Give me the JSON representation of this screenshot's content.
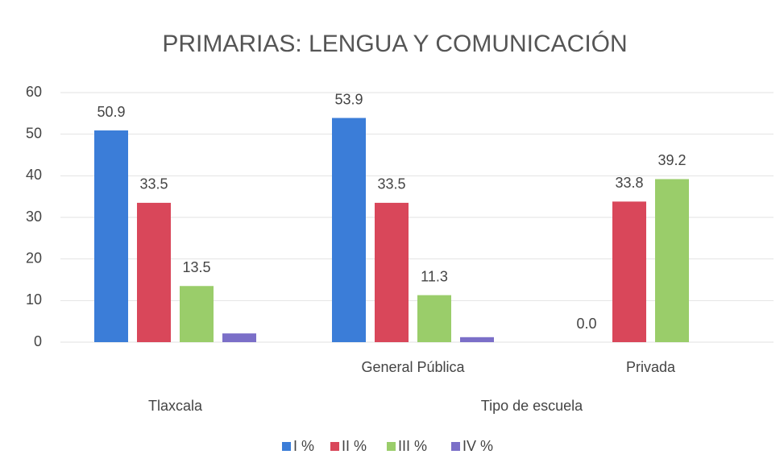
{
  "chart_data": {
    "type": "bar",
    "title": "PRIMARIAS: LENGUA Y COMUNICACIÓN",
    "category_groups": [
      {
        "name": "Tlaxcala",
        "categories": [
          null
        ]
      },
      {
        "name": "Tipo de escuela",
        "categories": [
          "General Pública",
          "Privada"
        ]
      }
    ],
    "series": [
      {
        "name": "I %",
        "color": "#3b7dd8",
        "values": [
          50.9,
          53.9,
          0.0
        ],
        "value_labels": [
          "50.9",
          "53.9",
          "0.0"
        ]
      },
      {
        "name": "II %",
        "color": "#d9475a",
        "values": [
          33.5,
          33.5,
          33.8
        ],
        "value_labels": [
          "33.5",
          "33.5",
          "33.8"
        ]
      },
      {
        "name": "III %",
        "color": "#9acd6a",
        "values": [
          13.5,
          11.3,
          39.2
        ],
        "value_labels": [
          "13.5",
          "11.3",
          "39.2"
        ]
      },
      {
        "name": "IV %",
        "color": "#7b6fc8",
        "values": [
          2.1,
          1.2,
          null
        ]
      }
    ],
    "ylim": [
      0,
      60
    ],
    "yticks": [
      0,
      10,
      20,
      30,
      40,
      50,
      60
    ],
    "grid": true,
    "legend": "bottom"
  }
}
